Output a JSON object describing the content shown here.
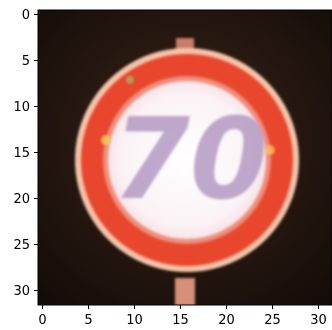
{
  "image": {
    "kind": "pixelated photo of a road sign displayed as an image plot",
    "subject": "speed limit sign",
    "sign_text": "70",
    "grid_size": [
      32,
      32
    ],
    "colors": {
      "background": "#2a1a12",
      "background_dark": "#140d0a",
      "ring": "#e8472f",
      "ring_inner_edge": "#f08e7c",
      "face": "#fbf2f5",
      "digits": "#b49ac3",
      "post": "#d59077",
      "highlight": "#f7d05b"
    }
  },
  "axes": {
    "x": {
      "range": [
        0,
        32
      ],
      "ticks": [
        "0",
        "5",
        "10",
        "15",
        "20",
        "25",
        "30"
      ]
    },
    "y": {
      "range": [
        0,
        32
      ],
      "inverted": true,
      "ticks": [
        "0",
        "5",
        "10",
        "15",
        "20",
        "25",
        "30"
      ]
    }
  }
}
